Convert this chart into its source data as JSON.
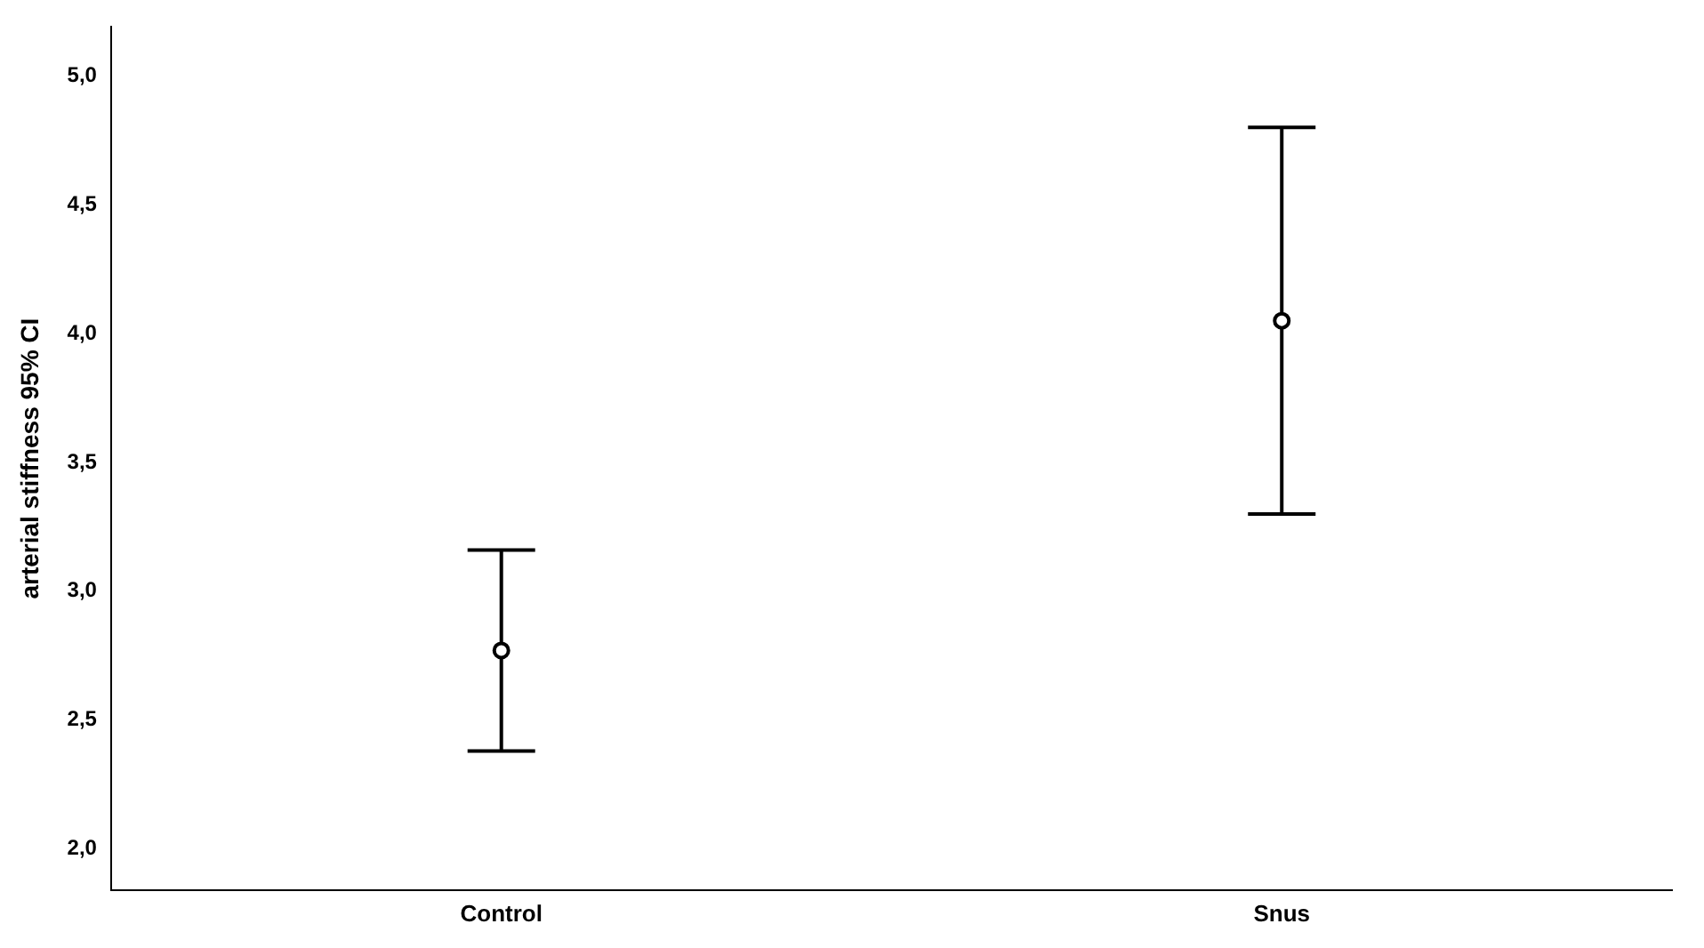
{
  "chart_data": {
    "type": "scatter",
    "ylabel": "arterial stiffness 95% CI",
    "categories": [
      "Control",
      "Snus"
    ],
    "values": [
      2.77,
      4.05
    ],
    "errors": [
      [
        2.38,
        3.16
      ],
      [
        3.3,
        4.8
      ]
    ],
    "color": "#000000",
    "marker": "circle",
    "grid": false,
    "legend": false,
    "ylim": [
      1.84,
      5.19
    ],
    "yticks": [
      {
        "value": 2,
        "label": "2,0"
      },
      {
        "value": 2.5,
        "label": "2,5"
      },
      {
        "value": 3,
        "label": "3,0"
      },
      {
        "value": 3.5,
        "label": "3,5"
      },
      {
        "value": 4,
        "label": "4,0"
      },
      {
        "value": 4.5,
        "label": "4,5"
      },
      {
        "value": 5,
        "label": "5,0"
      }
    ]
  }
}
